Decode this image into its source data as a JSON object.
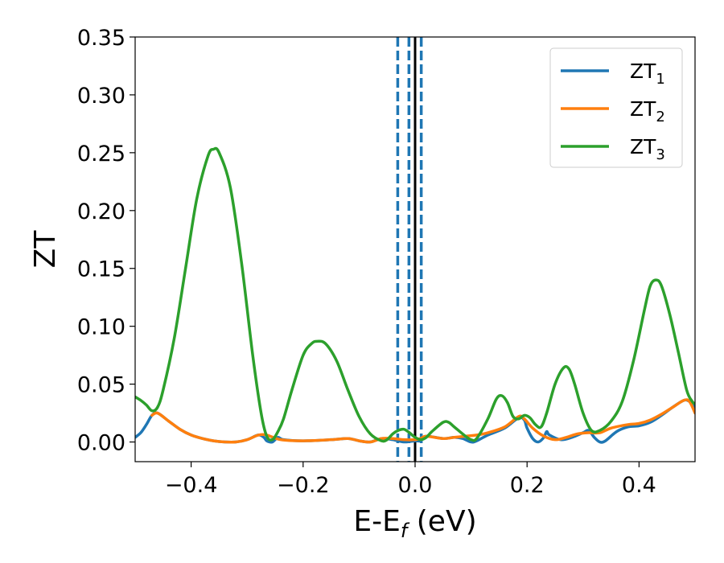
{
  "chart_data": {
    "type": "line",
    "xlabel": "E-E",
    "xlabel_sub": "f",
    "xlabel_unit": " (eV)",
    "ylabel": "ZT",
    "xlim": [
      -0.5,
      0.5
    ],
    "ylim": [
      -0.017,
      0.35
    ],
    "x_ticks": [
      -0.4,
      -0.2,
      0.0,
      0.2,
      0.4
    ],
    "x_tick_labels": [
      "−0.4",
      "−0.2",
      "0.0",
      "0.2",
      "0.4"
    ],
    "y_ticks": [
      0.0,
      0.05,
      0.1,
      0.15,
      0.2,
      0.25,
      0.3,
      0.35
    ],
    "y_tick_labels": [
      "0.00",
      "0.05",
      "0.10",
      "0.15",
      "0.20",
      "0.25",
      "0.30",
      "0.35"
    ],
    "grid": false,
    "legend_position": "top-right",
    "vertical_lines": [
      {
        "x": -0.031,
        "style": "dashed",
        "color": "#1f77b4"
      },
      {
        "x": -0.011,
        "style": "dashed",
        "color": "#1f77b4"
      },
      {
        "x": 0.011,
        "style": "dashed",
        "color": "#1f77b4"
      },
      {
        "x": 0.0,
        "style": "solid",
        "color": "#000000"
      }
    ],
    "series": [
      {
        "name": "ZT",
        "subscript": "1",
        "color": "#1f77b4",
        "points": [
          [
            -0.5,
            0.004
          ],
          [
            -0.49,
            0.008
          ],
          [
            -0.48,
            0.015
          ],
          [
            -0.47,
            0.023
          ],
          [
            -0.46,
            0.025
          ],
          [
            -0.44,
            0.018
          ],
          [
            -0.42,
            0.011
          ],
          [
            -0.4,
            0.006
          ],
          [
            -0.38,
            0.003
          ],
          [
            -0.36,
            0.001
          ],
          [
            -0.34,
            0.0
          ],
          [
            -0.32,
            0.0
          ],
          [
            -0.3,
            0.002
          ],
          [
            -0.28,
            0.006
          ],
          [
            -0.27,
            0.004
          ],
          [
            -0.265,
            0.001
          ],
          [
            -0.255,
            0.0
          ],
          [
            -0.245,
            0.004
          ],
          [
            -0.235,
            0.002
          ],
          [
            -0.2,
            0.001
          ],
          [
            -0.15,
            0.002
          ],
          [
            -0.12,
            0.003
          ],
          [
            -0.1,
            0.001
          ],
          [
            -0.08,
            0.0
          ],
          [
            -0.06,
            0.003
          ],
          [
            -0.04,
            0.002
          ],
          [
            -0.02,
            0.0
          ],
          [
            0.0,
            0.001
          ],
          [
            0.01,
            0.001
          ],
          [
            0.02,
            0.005
          ],
          [
            0.05,
            0.003
          ],
          [
            0.07,
            0.004
          ],
          [
            0.085,
            0.003
          ],
          [
            0.1,
            0.0
          ],
          [
            0.11,
            0.001
          ],
          [
            0.13,
            0.006
          ],
          [
            0.16,
            0.012
          ],
          [
            0.185,
            0.021
          ],
          [
            0.195,
            0.019
          ],
          [
            0.2,
            0.012
          ],
          [
            0.21,
            0.003
          ],
          [
            0.22,
            0.0
          ],
          [
            0.23,
            0.004
          ],
          [
            0.235,
            0.009
          ],
          [
            0.24,
            0.006
          ],
          [
            0.26,
            0.002
          ],
          [
            0.28,
            0.004
          ],
          [
            0.3,
            0.008
          ],
          [
            0.31,
            0.01
          ],
          [
            0.32,
            0.004
          ],
          [
            0.33,
            0.0
          ],
          [
            0.34,
            0.001
          ],
          [
            0.36,
            0.009
          ],
          [
            0.38,
            0.013
          ],
          [
            0.4,
            0.014
          ],
          [
            0.42,
            0.017
          ],
          [
            0.44,
            0.023
          ],
          [
            0.46,
            0.03
          ],
          [
            0.48,
            0.036
          ],
          [
            0.49,
            0.035
          ],
          [
            0.5,
            0.03
          ]
        ]
      },
      {
        "name": "ZT",
        "subscript": "2",
        "color": "#ff7f0e",
        "points": [
          [
            -0.47,
            0.023
          ],
          [
            -0.46,
            0.025
          ],
          [
            -0.44,
            0.018
          ],
          [
            -0.42,
            0.011
          ],
          [
            -0.4,
            0.006
          ],
          [
            -0.38,
            0.003
          ],
          [
            -0.36,
            0.001
          ],
          [
            -0.34,
            0.0
          ],
          [
            -0.32,
            0.0
          ],
          [
            -0.3,
            0.002
          ],
          [
            -0.28,
            0.006
          ],
          [
            -0.265,
            0.006
          ],
          [
            -0.24,
            0.002
          ],
          [
            -0.2,
            0.001
          ],
          [
            -0.15,
            0.002
          ],
          [
            -0.12,
            0.003
          ],
          [
            -0.1,
            0.001
          ],
          [
            -0.08,
            0.0
          ],
          [
            -0.06,
            0.003
          ],
          [
            -0.04,
            0.003
          ],
          [
            -0.02,
            0.002
          ],
          [
            0.0,
            0.002
          ],
          [
            0.01,
            0.003
          ],
          [
            0.02,
            0.005
          ],
          [
            0.05,
            0.003
          ],
          [
            0.07,
            0.004
          ],
          [
            0.09,
            0.005
          ],
          [
            0.11,
            0.006
          ],
          [
            0.13,
            0.008
          ],
          [
            0.16,
            0.013
          ],
          [
            0.185,
            0.022
          ],
          [
            0.195,
            0.02
          ],
          [
            0.21,
            0.012
          ],
          [
            0.23,
            0.005
          ],
          [
            0.25,
            0.002
          ],
          [
            0.27,
            0.004
          ],
          [
            0.29,
            0.007
          ],
          [
            0.31,
            0.008
          ],
          [
            0.33,
            0.008
          ],
          [
            0.35,
            0.012
          ],
          [
            0.38,
            0.015
          ],
          [
            0.4,
            0.016
          ],
          [
            0.42,
            0.019
          ],
          [
            0.44,
            0.024
          ],
          [
            0.46,
            0.03
          ],
          [
            0.48,
            0.036
          ],
          [
            0.49,
            0.035
          ],
          [
            0.5,
            0.025
          ]
        ]
      },
      {
        "name": "ZT",
        "subscript": "3",
        "color": "#2ca02c",
        "points": [
          [
            -0.5,
            0.039
          ],
          [
            -0.49,
            0.036
          ],
          [
            -0.48,
            0.032
          ],
          [
            -0.47,
            0.027
          ],
          [
            -0.46,
            0.03
          ],
          [
            -0.45,
            0.045
          ],
          [
            -0.43,
            0.09
          ],
          [
            -0.41,
            0.15
          ],
          [
            -0.39,
            0.21
          ],
          [
            -0.37,
            0.247
          ],
          [
            -0.36,
            0.253
          ],
          [
            -0.35,
            0.25
          ],
          [
            -0.33,
            0.22
          ],
          [
            -0.31,
            0.155
          ],
          [
            -0.29,
            0.075
          ],
          [
            -0.275,
            0.025
          ],
          [
            -0.265,
            0.005
          ],
          [
            -0.255,
            0.002
          ],
          [
            -0.245,
            0.009
          ],
          [
            -0.235,
            0.02
          ],
          [
            -0.22,
            0.045
          ],
          [
            -0.2,
            0.075
          ],
          [
            -0.185,
            0.085
          ],
          [
            -0.175,
            0.087
          ],
          [
            -0.16,
            0.085
          ],
          [
            -0.14,
            0.07
          ],
          [
            -0.12,
            0.045
          ],
          [
            -0.1,
            0.022
          ],
          [
            -0.08,
            0.007
          ],
          [
            -0.06,
            0.001
          ],
          [
            -0.05,
            0.002
          ],
          [
            -0.04,
            0.007
          ],
          [
            -0.03,
            0.01
          ],
          [
            -0.02,
            0.011
          ],
          [
            -0.01,
            0.008
          ],
          [
            0.0,
            0.004
          ],
          [
            0.01,
            0.002
          ],
          [
            0.02,
            0.004
          ],
          [
            0.03,
            0.009
          ],
          [
            0.05,
            0.017
          ],
          [
            0.06,
            0.017
          ],
          [
            0.07,
            0.013
          ],
          [
            0.09,
            0.005
          ],
          [
            0.1,
            0.002
          ],
          [
            0.11,
            0.003
          ],
          [
            0.13,
            0.02
          ],
          [
            0.145,
            0.037
          ],
          [
            0.155,
            0.04
          ],
          [
            0.165,
            0.034
          ],
          [
            0.175,
            0.022
          ],
          [
            0.185,
            0.02
          ],
          [
            0.195,
            0.023
          ],
          [
            0.205,
            0.021
          ],
          [
            0.215,
            0.015
          ],
          [
            0.225,
            0.013
          ],
          [
            0.235,
            0.025
          ],
          [
            0.25,
            0.05
          ],
          [
            0.265,
            0.064
          ],
          [
            0.275,
            0.063
          ],
          [
            0.285,
            0.05
          ],
          [
            0.3,
            0.025
          ],
          [
            0.315,
            0.01
          ],
          [
            0.33,
            0.01
          ],
          [
            0.35,
            0.018
          ],
          [
            0.37,
            0.035
          ],
          [
            0.39,
            0.07
          ],
          [
            0.41,
            0.115
          ],
          [
            0.42,
            0.135
          ],
          [
            0.43,
            0.14
          ],
          [
            0.44,
            0.135
          ],
          [
            0.455,
            0.11
          ],
          [
            0.47,
            0.078
          ],
          [
            0.485,
            0.045
          ],
          [
            0.495,
            0.035
          ],
          [
            0.5,
            0.033
          ]
        ]
      }
    ]
  }
}
